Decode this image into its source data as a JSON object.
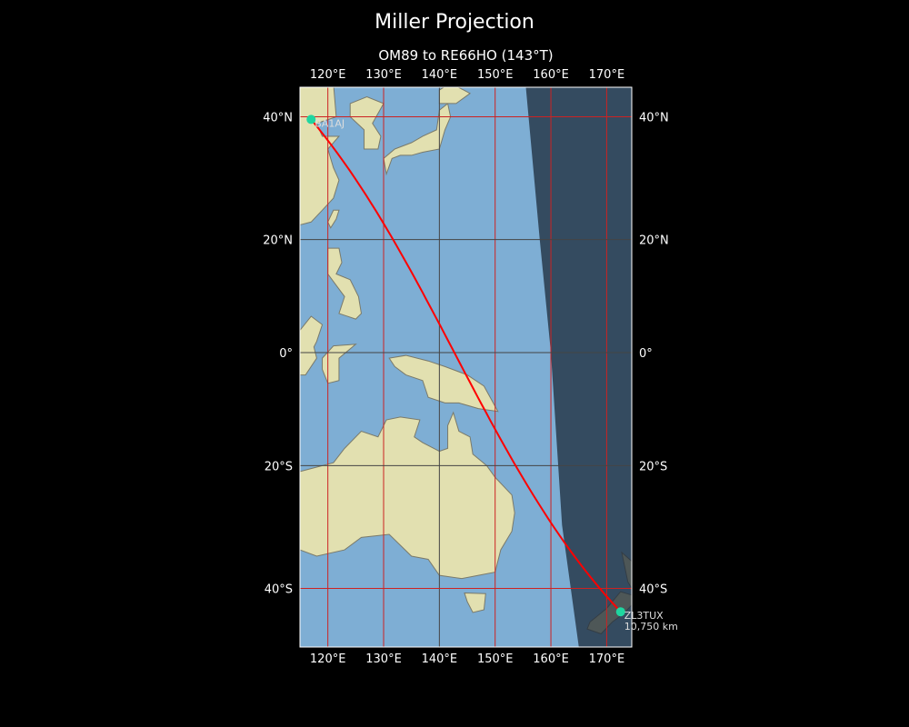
{
  "title": "Miller Projection",
  "subtitle": "OM89 to RE66HO (143°T)",
  "map": {
    "projection": "Miller",
    "extent": {
      "lon": [
        115,
        174.5
      ],
      "lat": [
        -48.5,
        44.5
      ]
    },
    "lon_ticks": [
      120,
      130,
      140,
      150,
      160,
      170
    ],
    "lon_labels": [
      "120°E",
      "130°E",
      "140°E",
      "150°E",
      "160°E",
      "170°E"
    ],
    "lat_ticks": [
      40,
      20,
      0,
      -20,
      -40
    ],
    "lat_labels": [
      "40°N",
      "20°N",
      "0°",
      "20°S",
      "40°S"
    ],
    "colors": {
      "ocean": "#7eaed4",
      "land": "#e2e0b0",
      "path": "#ff0000",
      "station": "#1fd6a0",
      "grid_red": "#cc2222",
      "grid_dark": "#444444",
      "night": "#1c2a3a"
    },
    "night_terminator": [
      {
        "lon": 155.5,
        "lat": 44.5
      },
      {
        "lon": 158,
        "lat": 20
      },
      {
        "lon": 160,
        "lat": 0
      },
      {
        "lon": 162,
        "lat": -30
      },
      {
        "lon": 165,
        "lat": -48.5
      }
    ]
  },
  "stations": [
    {
      "label": "BA1AJ",
      "lon": 117,
      "lat": 39.6
    },
    {
      "label": "ZL3TUX",
      "distance": "10,750 km",
      "lon": 172.5,
      "lat": -43.5
    }
  ]
}
